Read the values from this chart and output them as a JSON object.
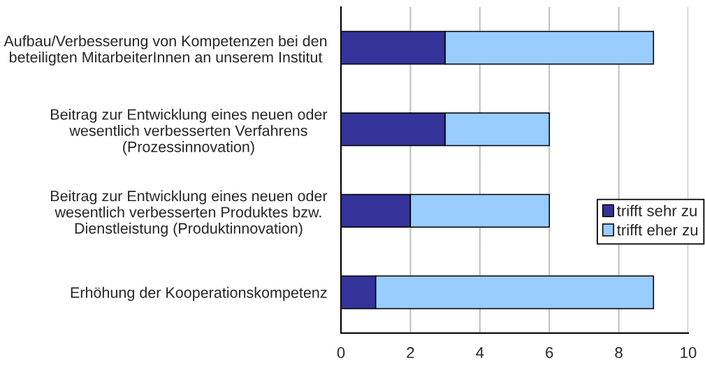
{
  "chart_data": {
    "type": "bar",
    "orientation": "horizontal",
    "stacked": true,
    "categories": [
      "Aufbau/Verbesserung von Kompetenzen bei den\nbeteiligten MitarbeiterInnen an unserem Institut",
      "Beitrag zur Entwicklung eines neuen oder\nwesentlich verbesserten Verfahrens\n(Prozessinnovation)",
      "Beitrag zur Entwicklung eines neuen oder\nwesentlich verbesserten Produktes bzw.\nDienstleistung (Produktinnovation)",
      "Erhöhung der Kooperationskompetenz"
    ],
    "series": [
      {
        "name": "trifft sehr zu",
        "color": "#333399",
        "values": [
          3,
          3,
          2,
          1
        ]
      },
      {
        "name": "trifft eher zu",
        "color": "#99ccff",
        "values": [
          6,
          3,
          4,
          8
        ]
      }
    ],
    "xlim": [
      0,
      10
    ],
    "xticks": [
      0,
      2,
      4,
      6,
      8,
      10
    ],
    "grid": "x",
    "legend": "right"
  }
}
